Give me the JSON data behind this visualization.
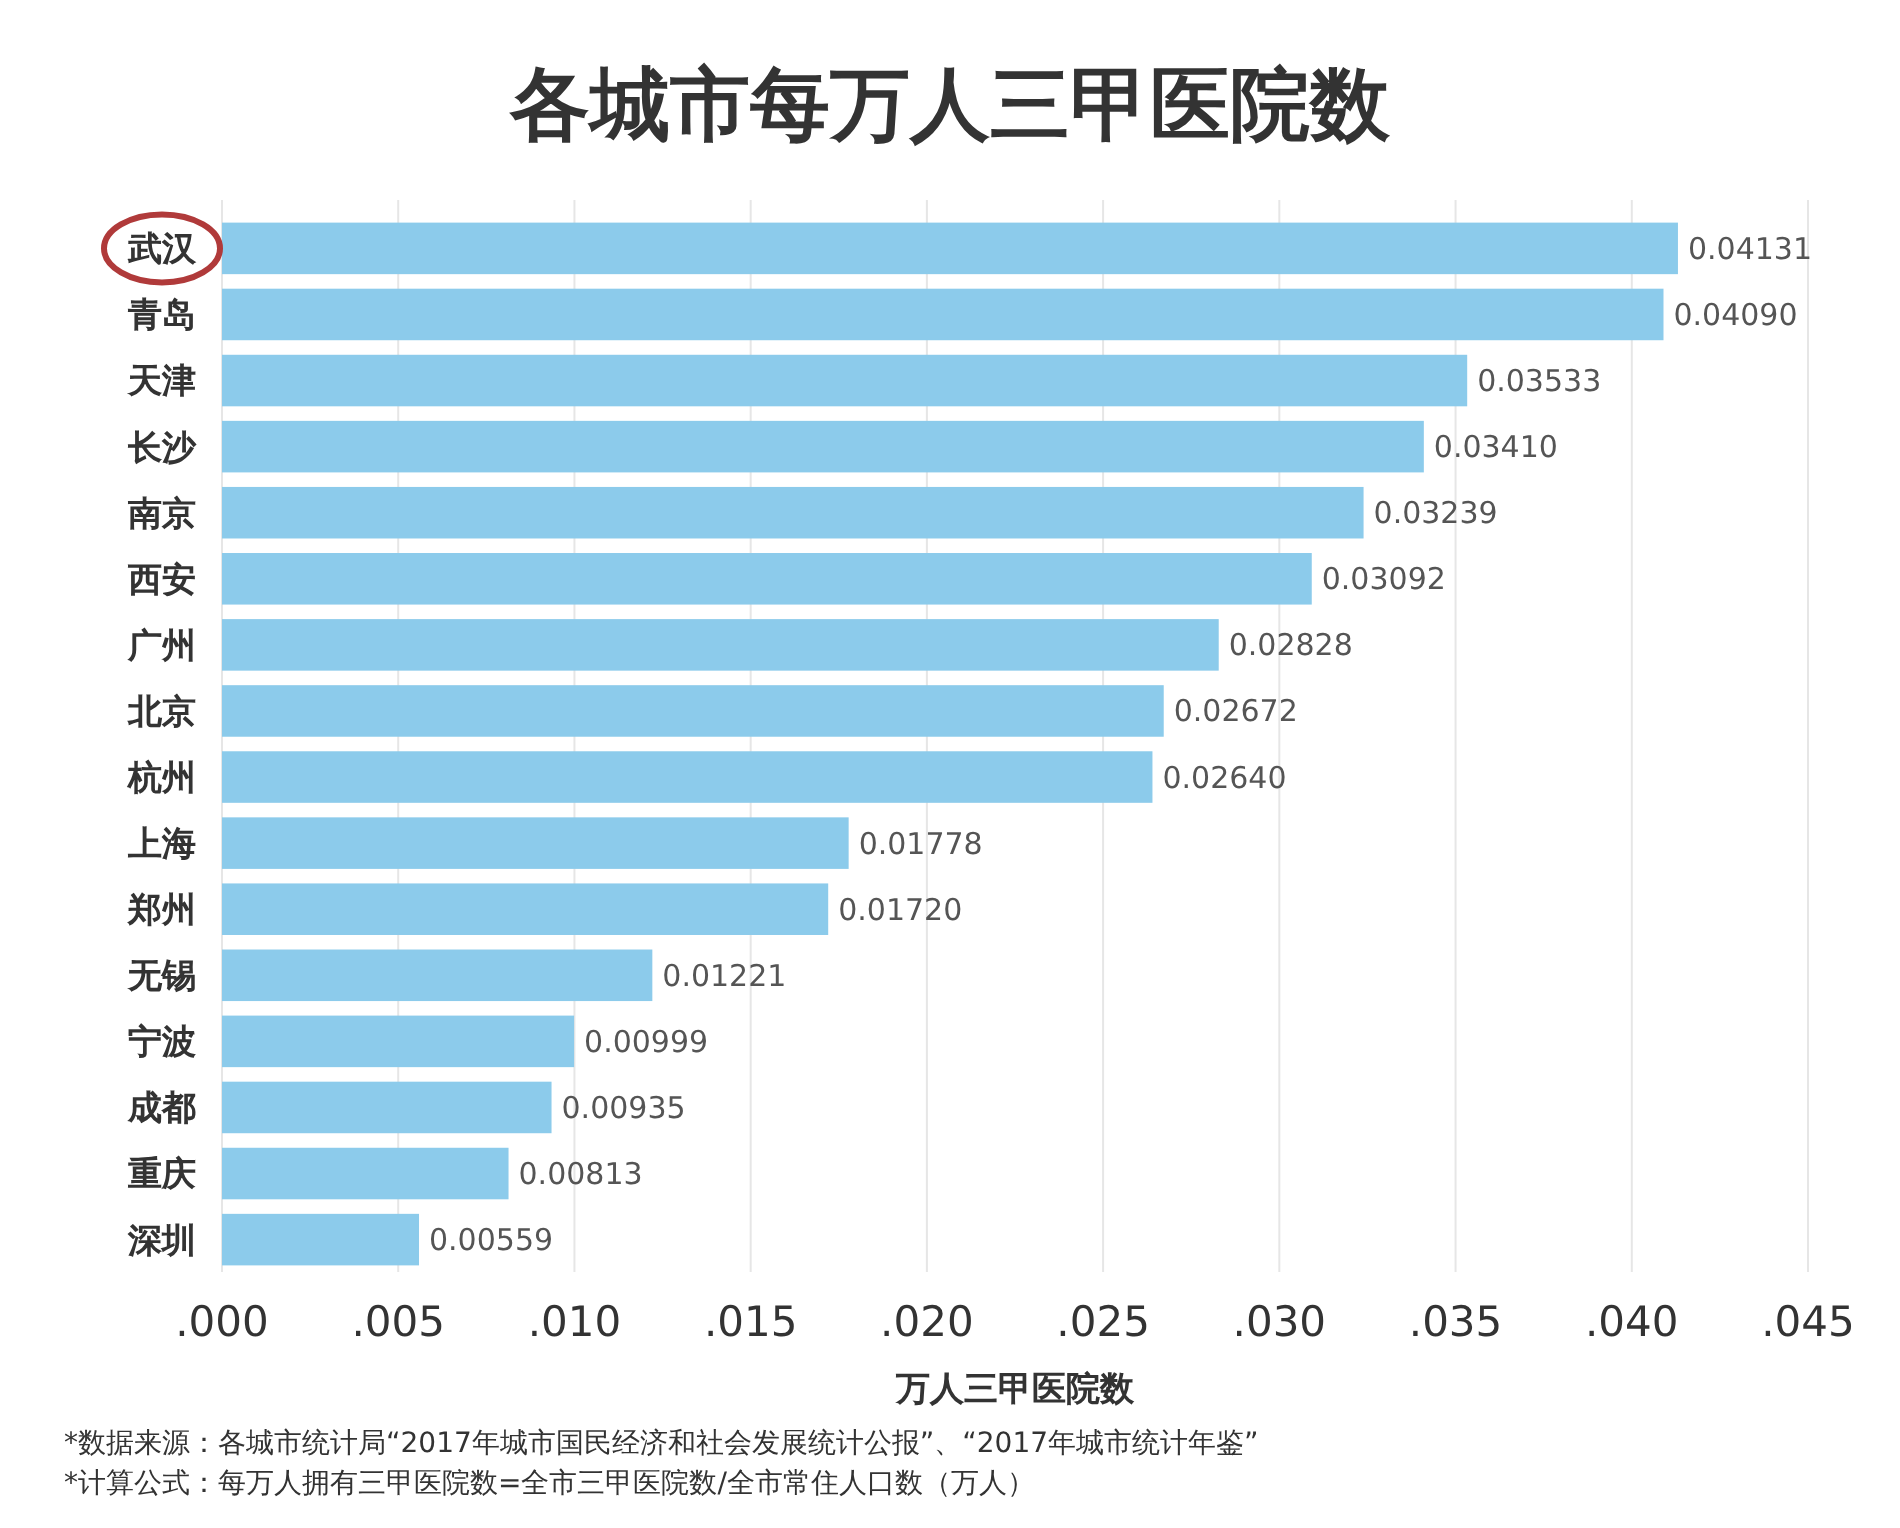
{
  "chart_data": {
    "type": "bar",
    "orientation": "horizontal",
    "title": "各城市每万人三甲医院数",
    "xlabel": "万人三甲医院数",
    "categories": [
      "武汉",
      "青岛",
      "天津",
      "长沙",
      "南京",
      "西安",
      "广州",
      "北京",
      "杭州",
      "上海",
      "郑州",
      "无锡",
      "宁波",
      "成都",
      "重庆",
      "深圳"
    ],
    "values": [
      0.04131,
      0.0409,
      0.03533,
      0.0341,
      0.03239,
      0.03092,
      0.02828,
      0.02672,
      0.0264,
      0.01778,
      0.0172,
      0.01221,
      0.00999,
      0.00935,
      0.00813,
      0.00559
    ],
    "value_labels": [
      "0.04131",
      "0.04090",
      "0.03533",
      "0.03410",
      "0.03239",
      "0.03092",
      "0.02828",
      "0.02672",
      "0.02640",
      "0.01778",
      "0.01720",
      "0.01221",
      "0.00999",
      "0.00935",
      "0.00813",
      "0.00559"
    ],
    "color": "#8ccbeb",
    "xlim": [
      0,
      0.045
    ],
    "xticks": [
      {
        "value": 0,
        "label": ".000"
      },
      {
        "value": 0.005,
        "label": ".005"
      },
      {
        "value": 0.01,
        "label": ".010"
      },
      {
        "value": 0.015,
        "label": ".015"
      },
      {
        "value": 0.02,
        "label": ".020"
      },
      {
        "value": 0.025,
        "label": ".025"
      },
      {
        "value": 0.03,
        "label": ".030"
      },
      {
        "value": 0.035,
        "label": ".035"
      },
      {
        "value": 0.04,
        "label": ".040"
      },
      {
        "value": 0.045,
        "label": ".045"
      }
    ],
    "grid": "x",
    "annotations": [
      "*数据来源：各城市统计局“2017年城市国民经济和社会发展统计公报”、“2017年城市统计年鉴”",
      "*计算公式：每万人拥有三甲医院数=全市三甲医院数/全市常住人口数（万人）"
    ]
  }
}
